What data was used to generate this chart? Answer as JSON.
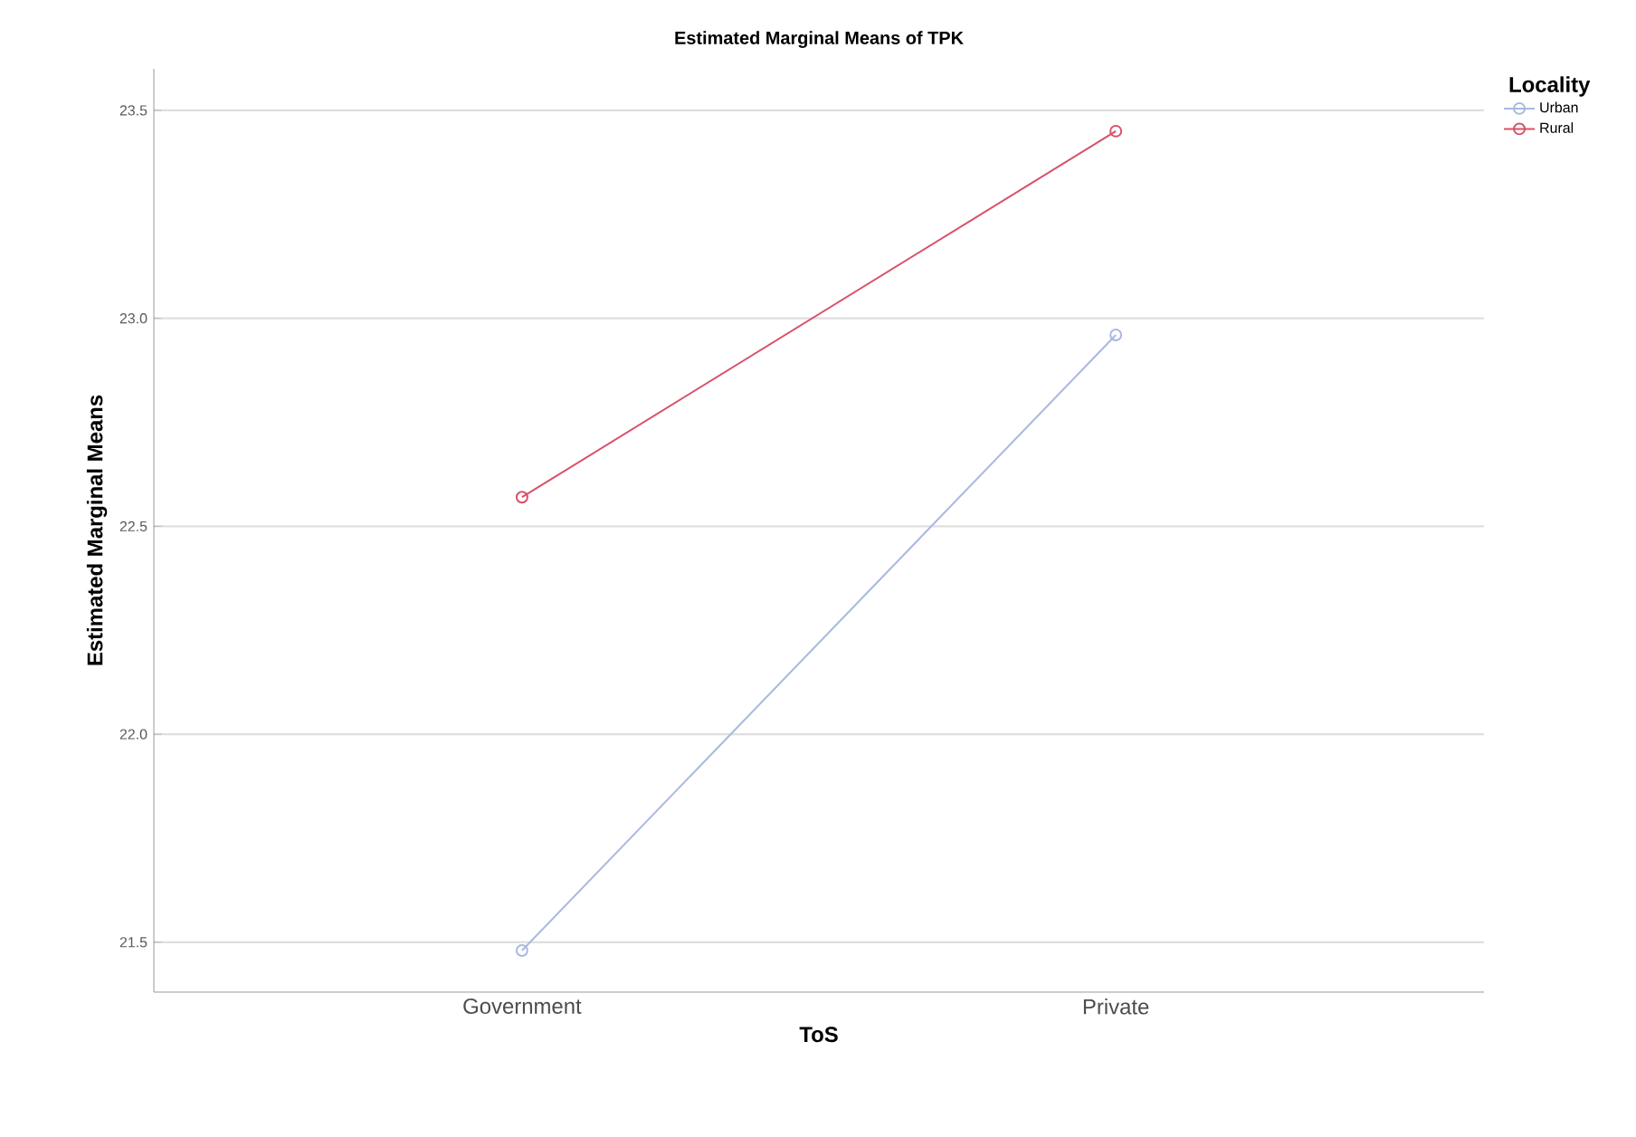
{
  "chart_data": {
    "type": "line",
    "title": "Estimated Marginal Means of TPK",
    "xlabel": "ToS",
    "ylabel": "Estimated Marginal Means",
    "legend_title": "Locality",
    "categories": [
      "Government",
      "Private"
    ],
    "series": [
      {
        "name": "Urban",
        "color": "#a9b8e0",
        "values": [
          21.48,
          22.96
        ]
      },
      {
        "name": "Rural",
        "color": "#d9506a",
        "values": [
          22.57,
          23.45
        ]
      }
    ],
    "ylim": [
      21.38,
      23.6
    ],
    "yticks": [
      {
        "value": 21.5,
        "label": "21.5"
      },
      {
        "value": 22.0,
        "label": "22.0"
      },
      {
        "value": 22.5,
        "label": "22.5"
      },
      {
        "value": 23.0,
        "label": "23.0"
      },
      {
        "value": 23.5,
        "label": "23.5"
      }
    ],
    "grid": "y",
    "legend": "top right",
    "marker": "circle",
    "line_style": "solid"
  }
}
